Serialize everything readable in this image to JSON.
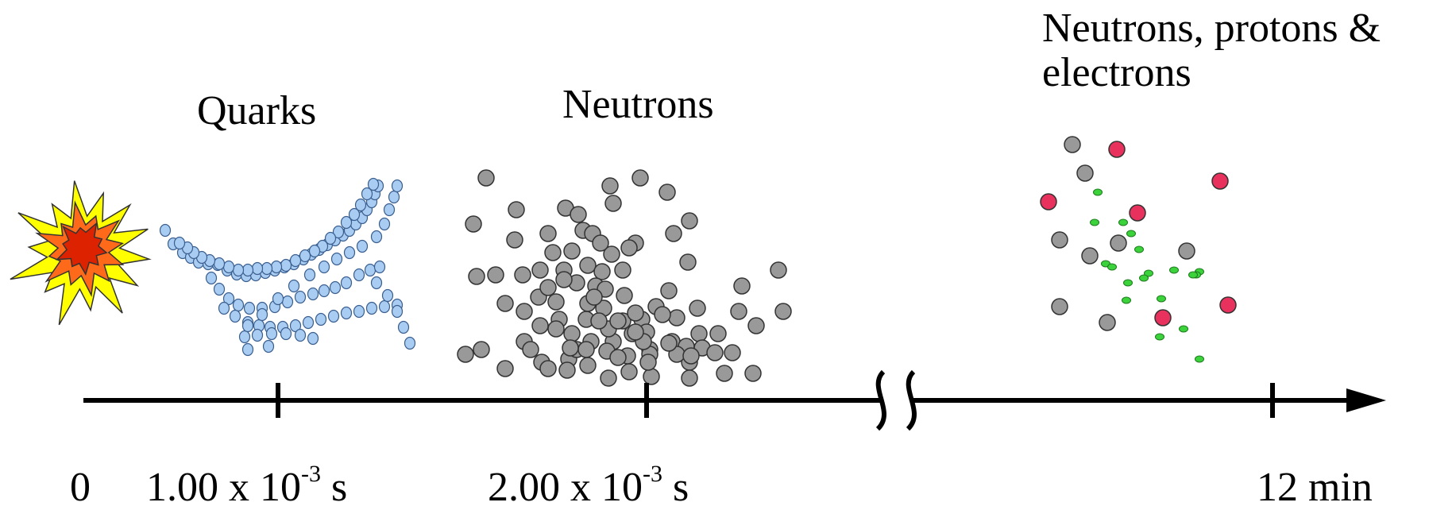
{
  "stages": [
    {
      "label": "Quarks"
    },
    {
      "label": "Neutrons"
    },
    {
      "label": "Neutrons, protons &",
      "label_line2": "electrons"
    }
  ],
  "timeline": {
    "ticks": [
      {
        "label": "0"
      },
      {
        "base": "1.00 x 10",
        "exp": "-3",
        "unit": " s"
      },
      {
        "base": "2.00 x 10",
        "exp": "-3",
        "unit": " s"
      },
      {
        "label": "12 min"
      }
    ]
  },
  "particle_colors": {
    "quark": "#a9ccf2",
    "neutron": "#999999",
    "proton": "#e8315c",
    "electron": "#3bd23b",
    "explosion_outer": "#ffff00",
    "explosion_mid": "#ff6a1a",
    "explosion_inner": "#dd2200"
  },
  "icons": [
    "big-bang-explosion-icon",
    "axis-break-icon",
    "arrow-head-icon"
  ]
}
